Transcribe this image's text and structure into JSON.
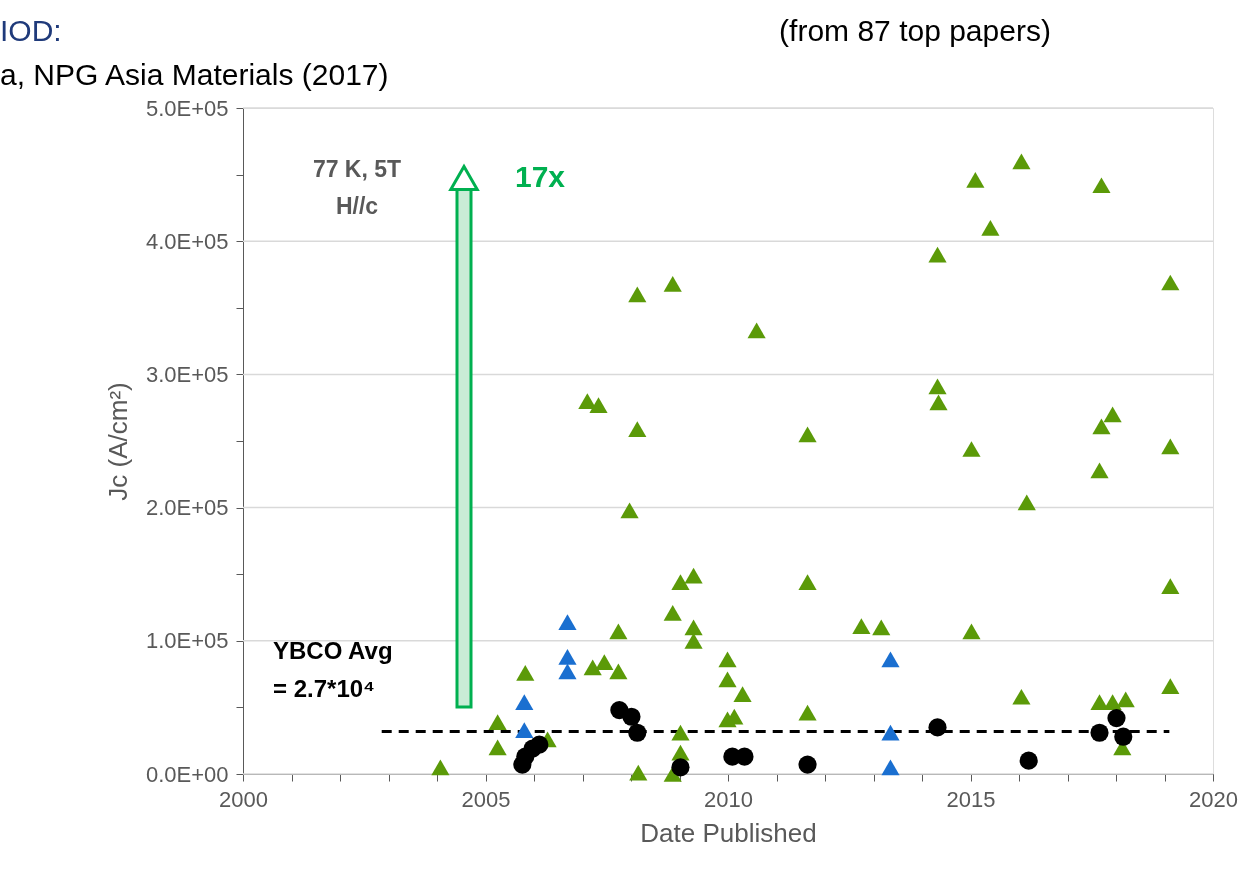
{
  "chart_data": {
    "type": "scatter",
    "xlabel": "Date Published",
    "ylabel": "Jc (A/cm²)",
    "annotations": [
      "IOD:",
      "a, NPG Asia Materials (2017)",
      "(from 87 top papers)",
      "77 K, 5T\nH//c",
      "17x",
      "YBCO Avg\n= 2.7*10⁴"
    ],
    "xlim": [
      2000,
      2020
    ],
    "xticks": [
      2000,
      {
        "value": 2001,
        "label": null
      },
      {
        "value": 2002,
        "label": null
      },
      {
        "value": 2003,
        "label": null
      },
      {
        "value": 2004,
        "label": null
      },
      2005,
      {
        "value": 2006,
        "label": null
      },
      {
        "value": 2007,
        "label": null
      },
      {
        "value": 2008,
        "label": null
      },
      {
        "value": 2009,
        "label": null
      },
      2010,
      {
        "value": 2011,
        "label": null
      },
      {
        "value": 2012,
        "label": null
      },
      {
        "value": 2013,
        "label": null
      },
      {
        "value": 2014,
        "label": null
      },
      2015,
      {
        "value": 2016,
        "label": null
      },
      {
        "value": 2017,
        "label": null
      },
      {
        "value": 2018,
        "label": null
      },
      {
        "value": 2019,
        "label": null
      },
      2020
    ],
    "ylim": [
      0,
      500000
    ],
    "yticks": [
      {
        "value": 0,
        "label": "0.0E+00"
      },
      {
        "value": 50000,
        "label": null
      },
      {
        "value": 100000,
        "label": "1.0E+05"
      },
      {
        "value": 150000,
        "label": null
      },
      {
        "value": 200000,
        "label": "2.0E+05"
      },
      {
        "value": 250000,
        "label": null
      },
      {
        "value": 300000,
        "label": "3.0E+05"
      },
      {
        "value": 350000,
        "label": null
      },
      {
        "value": 400000,
        "label": "4.0E+05"
      },
      {
        "value": 450000,
        "label": null
      },
      {
        "value": 500000,
        "label": "5.0E+05"
      }
    ],
    "grid": "y",
    "series": [
      {
        "type": "line",
        "color": "#000000",
        "line_style": "dashed",
        "marker": "none",
        "x": [
          2002.86,
          2019.1
        ],
        "values": [
          32000,
          32000
        ]
      },
      {
        "color": "#5b9a08",
        "marker": "triangle",
        "x": [
          2004.07,
          2005.25,
          2005.25,
          2005.82,
          2006.28,
          2007.1,
          2007.33,
          2007.21,
          2007.45,
          2007.74,
          2007.74,
          2007.97,
          2008.13,
          2008.13,
          2008.15,
          2008.86,
          2008.86,
          2009.02,
          2009.02,
          2009.02,
          2008.86,
          2009.29,
          2009.29,
          2009.29,
          2009.99,
          2009.99,
          2010.3,
          2009.99,
          2010.13,
          2010.59,
          2011.64,
          2011.64,
          2011.64,
          2012.75,
          2013.16,
          2014.32,
          2014.32,
          2014.34,
          2015.02,
          2015.02,
          2015.1,
          2015.41,
          2016.05,
          2016.16,
          2016.05,
          2017.66,
          2017.66,
          2017.7,
          2017.93,
          2017.7,
          2017.93,
          2018.2,
          2018.13,
          2019.12,
          2019.12,
          2019.12,
          2019.12
        ],
        "values": [
          5000,
          39000,
          20000,
          76000,
          26000,
          280000,
          277000,
          80000,
          84000,
          107000,
          77000,
          198000,
          360000,
          259000,
          1000,
          368000,
          121000,
          144000,
          31000,
          16000,
          0,
          149000,
          110000,
          100000,
          86000,
          71000,
          60000,
          41000,
          43000,
          333000,
          255000,
          144000,
          46000,
          111000,
          110000,
          390000,
          291000,
          279000,
          244000,
          107000,
          446000,
          410000,
          460000,
          204000,
          58000,
          228000,
          54000,
          261000,
          270000,
          442000,
          54000,
          56000,
          20000,
          369000,
          246000,
          141000,
          66000
        ]
      },
      {
        "color": "#1a6fd0",
        "marker": "triangle",
        "x": [
          2006.69,
          2006.69,
          2006.69,
          2005.8,
          2005.8,
          2013.35,
          2013.35,
          2013.35
        ],
        "values": [
          114000,
          88000,
          77000,
          54000,
          33000,
          86000,
          31000,
          5000
        ]
      },
      {
        "color": "#000000",
        "marker": "circle",
        "x": [
          2005.76,
          2005.82,
          2005.97,
          2006.11,
          2007.76,
          2008.01,
          2008.13,
          2009.02,
          2010.09,
          2010.34,
          2011.64,
          2014.32,
          2016.2,
          2017.66,
          2018.01,
          2018.15
        ],
        "values": [
          7000,
          13000,
          19000,
          22000,
          48000,
          43000,
          31000,
          5000,
          13000,
          13000,
          7000,
          35000,
          10000,
          31000,
          42000,
          28000
        ]
      }
    ]
  }
}
